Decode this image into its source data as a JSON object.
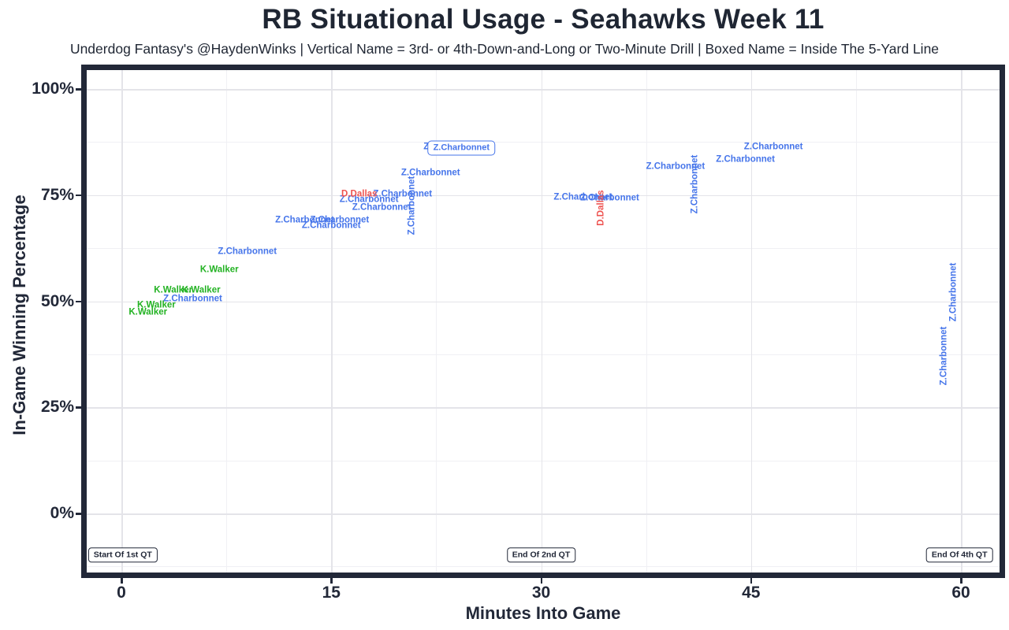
{
  "chart_data": {
    "type": "scatter",
    "title": "RB Situational Usage - Seahawks Week 11",
    "subtitle": "Underdog Fantasy's @HaydenWinks | Vertical Name = 3rd- or 4th-Down-and-Long or Two-Minute Drill | Boxed Name = Inside The 5-Yard Line",
    "xlabel": "Minutes Into Game",
    "ylabel": "In-Game Winning Percentage",
    "xlim": [
      -2.5,
      62.8
    ],
    "ylim": [
      -13.9,
      104.5
    ],
    "grid": true,
    "legend_position": "none",
    "marker": "text-label",
    "x_ticks": [
      {
        "value": 0,
        "label": "0"
      },
      {
        "value": 15,
        "label": "15"
      },
      {
        "value": 30,
        "label": "30"
      },
      {
        "value": 45,
        "label": "45"
      },
      {
        "value": 60,
        "label": "60"
      }
    ],
    "y_ticks": [
      {
        "value": 0,
        "label": "0%"
      },
      {
        "value": 25,
        "label": "25%"
      },
      {
        "value": 50,
        "label": "50%"
      },
      {
        "value": 75,
        "label": "75%"
      },
      {
        "value": 100,
        "label": "100%"
      }
    ],
    "x_minor": [
      7.5,
      22.5,
      37.5,
      52.5
    ],
    "y_minor": [
      -12.5,
      12.5,
      37.5,
      62.5,
      87.5
    ],
    "colors": {
      "Z.Charbonnet": "#4675ea",
      "K.Walker": "#22b222",
      "D.Dallas": "#ee5350",
      "axis": "#222838",
      "grid_major": "#e4e4e9",
      "grid_minor": "#f0f0f4"
    },
    "points": [
      {
        "player": "Z.Charbonnet",
        "minutes": 9.0,
        "win_pct": 61.6,
        "orientation": "h",
        "boxed": false
      },
      {
        "player": "Z.Charbonnet",
        "minutes": 5.1,
        "win_pct": 50.5,
        "orientation": "h",
        "boxed": false
      },
      {
        "player": "Z.Charbonnet",
        "minutes": 13.1,
        "win_pct": 69.0,
        "orientation": "h",
        "boxed": false
      },
      {
        "player": "Z.Charbonnet",
        "minutes": 15.6,
        "win_pct": 69.0,
        "orientation": "h",
        "boxed": false
      },
      {
        "player": "Z.Charbonnet",
        "minutes": 15.0,
        "win_pct": 67.7,
        "orientation": "h",
        "boxed": false
      },
      {
        "player": "Z.Charbonnet",
        "minutes": 17.7,
        "win_pct": 73.8,
        "orientation": "h",
        "boxed": false
      },
      {
        "player": "Z.Charbonnet",
        "minutes": 18.6,
        "win_pct": 72.0,
        "orientation": "h",
        "boxed": false
      },
      {
        "player": "Z.Charbonnet",
        "minutes": 20.1,
        "win_pct": 75.1,
        "orientation": "h",
        "boxed": false
      },
      {
        "player": "Z.Charbonnet",
        "minutes": 22.1,
        "win_pct": 80.1,
        "orientation": "h",
        "boxed": false
      },
      {
        "player": "Z.Charbonnet",
        "minutes": 23.7,
        "win_pct": 86.3,
        "orientation": "h",
        "boxed": false
      },
      {
        "player": "Z.Charbonnet",
        "minutes": 33.0,
        "win_pct": 74.4,
        "orientation": "h",
        "boxed": false
      },
      {
        "player": "Z.Charbonnet",
        "minutes": 34.9,
        "win_pct": 74.2,
        "orientation": "h",
        "boxed": false
      },
      {
        "player": "Z.Charbonnet",
        "minutes": 39.6,
        "win_pct": 81.6,
        "orientation": "h",
        "boxed": false
      },
      {
        "player": "Z.Charbonnet",
        "minutes": 44.6,
        "win_pct": 83.3,
        "orientation": "h",
        "boxed": false
      },
      {
        "player": "Z.Charbonnet",
        "minutes": 46.6,
        "win_pct": 86.3,
        "orientation": "h",
        "boxed": false
      },
      {
        "player": "Z.Charbonnet",
        "minutes": 24.3,
        "win_pct": 86.1,
        "orientation": "h",
        "boxed": true
      },
      {
        "player": "Z.Charbonnet",
        "minutes": 20.8,
        "win_pct": 72.5,
        "orientation": "v",
        "boxed": false
      },
      {
        "player": "Z.Charbonnet",
        "minutes": 41.0,
        "win_pct": 77.6,
        "orientation": "v",
        "boxed": false
      },
      {
        "player": "Z.Charbonnet",
        "minutes": 59.5,
        "win_pct": 52.1,
        "orientation": "v",
        "boxed": false
      },
      {
        "player": "Z.Charbonnet",
        "minutes": 58.8,
        "win_pct": 37.1,
        "orientation": "v",
        "boxed": false
      },
      {
        "player": "K.Walker",
        "minutes": 7.0,
        "win_pct": 57.3,
        "orientation": "h",
        "boxed": false
      },
      {
        "player": "K.Walker",
        "minutes": 3.7,
        "win_pct": 52.5,
        "orientation": "h",
        "boxed": false
      },
      {
        "player": "K.Walker",
        "minutes": 5.7,
        "win_pct": 52.5,
        "orientation": "h",
        "boxed": false
      },
      {
        "player": "K.Walker",
        "minutes": 2.5,
        "win_pct": 49.0,
        "orientation": "h",
        "boxed": false
      },
      {
        "player": "K.Walker",
        "minutes": 1.9,
        "win_pct": 47.3,
        "orientation": "h",
        "boxed": false
      },
      {
        "player": "D.Dallas",
        "minutes": 17.0,
        "win_pct": 75.1,
        "orientation": "h",
        "boxed": false
      },
      {
        "player": "D.Dallas",
        "minutes": 34.3,
        "win_pct": 72.0,
        "orientation": "v",
        "boxed": false
      }
    ],
    "annotations": [
      {
        "label": "Start Of 1st QT",
        "minutes": 0.1,
        "win_pct": -9.8
      },
      {
        "label": "End Of 2nd QT",
        "minutes": 30.0,
        "win_pct": -9.8
      },
      {
        "label": "End Of 4th QT",
        "minutes": 59.9,
        "win_pct": -9.8
      }
    ]
  }
}
